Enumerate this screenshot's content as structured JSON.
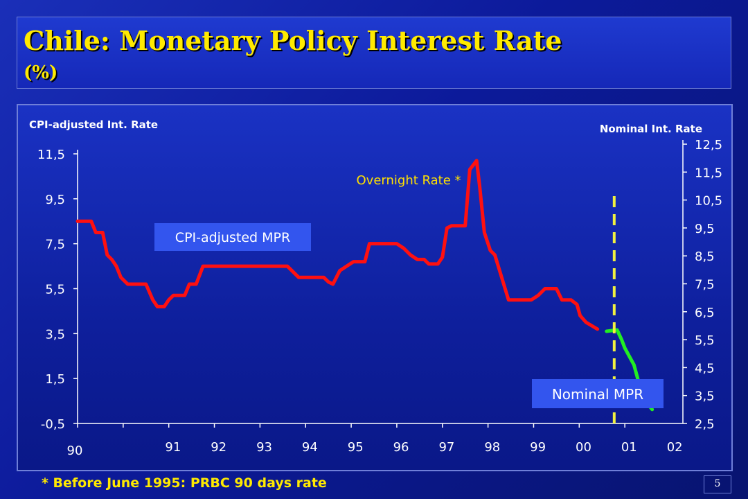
{
  "header": {
    "title": "Chile: Monetary Policy Interest Rate",
    "subtitle": "(%)"
  },
  "footnote": "* Before June 1995: PRBC 90 days rate",
  "page_number": "5",
  "colors": {
    "cpi_line": "#ff1010",
    "nominal_line": "#22ee22",
    "divider": "#f0f040",
    "label_box": "#3355ee",
    "title_text": "#ffea00"
  },
  "chart_data": {
    "type": "line",
    "title": "",
    "left_axis": {
      "label": "CPI-adjusted  Int.  Rate",
      "ticks": [
        "11,5",
        "9,5",
        "7,5",
        "5,5",
        "3,5",
        "1,5",
        "-0,5"
      ],
      "tick_values": [
        11.5,
        9.5,
        7.5,
        5.5,
        3.5,
        1.5,
        -0.5
      ],
      "range": [
        -0.5,
        11.5
      ]
    },
    "right_axis": {
      "label": "Nominal  Int.  Rate",
      "ticks": [
        "12,5",
        "11,5",
        "10,5",
        "9,5",
        "8,5",
        "7,5",
        "6,5",
        "5,5",
        "4,5",
        "3,5",
        "2,5"
      ],
      "tick_values": [
        12.5,
        11.5,
        10.5,
        9.5,
        8.5,
        7.5,
        6.5,
        5.5,
        4.5,
        3.5,
        2.5
      ],
      "range": [
        2.5,
        12.5
      ]
    },
    "x_axis": {
      "ticks": [
        "90",
        "91",
        "92",
        "93",
        "94",
        "95",
        "96",
        "97",
        "98",
        "99",
        "00",
        "01",
        "02"
      ],
      "tick_values": [
        1990,
        1991,
        1992,
        1993,
        1994,
        1995,
        1996,
        1997,
        1998,
        1999,
        2000,
        2001,
        2002
      ],
      "range": [
        1990,
        2003
      ]
    },
    "divider_x": 2001.6,
    "annotations": [
      {
        "text": "Overnight Rate *"
      },
      {
        "text": "CPI-adjusted MPR"
      },
      {
        "text": "Nominal MPR"
      }
    ],
    "series": [
      {
        "name": "CPI-adjusted MPR",
        "axis": "left",
        "points": [
          [
            1990.0,
            8.5
          ],
          [
            1990.3,
            8.5
          ],
          [
            1990.4,
            8.0
          ],
          [
            1990.55,
            8.0
          ],
          [
            1990.65,
            7.0
          ],
          [
            1990.75,
            6.8
          ],
          [
            1990.85,
            6.5
          ],
          [
            1990.95,
            6.0
          ],
          [
            1991.1,
            5.7
          ],
          [
            1991.5,
            5.7
          ],
          [
            1991.65,
            5.0
          ],
          [
            1991.75,
            4.7
          ],
          [
            1991.9,
            4.7
          ],
          [
            1992.0,
            5.0
          ],
          [
            1992.1,
            5.2
          ],
          [
            1992.35,
            5.2
          ],
          [
            1992.45,
            5.7
          ],
          [
            1992.6,
            5.7
          ],
          [
            1992.75,
            6.5
          ],
          [
            1993.0,
            6.5
          ],
          [
            1994.6,
            6.5
          ],
          [
            1994.75,
            6.2
          ],
          [
            1994.85,
            6.0
          ],
          [
            1995.4,
            6.0
          ],
          [
            1995.5,
            5.8
          ],
          [
            1995.6,
            5.7
          ],
          [
            1995.75,
            6.3
          ],
          [
            1995.9,
            6.5
          ],
          [
            1996.05,
            6.7
          ],
          [
            1996.3,
            6.7
          ],
          [
            1996.4,
            7.5
          ],
          [
            1997.0,
            7.5
          ],
          [
            1997.15,
            7.3
          ],
          [
            1997.3,
            7.0
          ],
          [
            1997.45,
            6.8
          ],
          [
            1997.6,
            6.8
          ],
          [
            1997.7,
            6.6
          ],
          [
            1997.9,
            6.6
          ],
          [
            1998.0,
            6.9
          ],
          [
            1998.1,
            8.2
          ],
          [
            1998.2,
            8.3
          ],
          [
            1998.5,
            8.3
          ],
          [
            1998.6,
            10.8
          ],
          [
            1998.75,
            11.2
          ],
          [
            1998.82,
            10.0
          ],
          [
            1998.92,
            8.0
          ],
          [
            1999.05,
            7.2
          ],
          [
            1999.15,
            7.0
          ],
          [
            1999.3,
            6.0
          ],
          [
            1999.45,
            5.0
          ],
          [
            1999.95,
            5.0
          ],
          [
            2000.1,
            5.2
          ],
          [
            2000.25,
            5.5
          ],
          [
            2000.5,
            5.5
          ],
          [
            2000.62,
            5.0
          ],
          [
            2000.82,
            5.0
          ],
          [
            2000.95,
            4.8
          ],
          [
            2001.02,
            4.3
          ],
          [
            2001.15,
            4.0
          ],
          [
            2001.4,
            3.7
          ]
        ]
      },
      {
        "name": "Nominal MPR",
        "axis": "right",
        "points": [
          [
            2001.6,
            5.8
          ],
          [
            2001.83,
            5.85
          ],
          [
            2001.93,
            5.5
          ],
          [
            2002.0,
            5.2
          ],
          [
            2002.1,
            4.9
          ],
          [
            2002.2,
            4.6
          ],
          [
            2002.3,
            4.0
          ],
          [
            2002.4,
            3.7
          ],
          [
            2002.5,
            3.2
          ],
          [
            2002.6,
            3.0
          ]
        ]
      }
    ]
  }
}
